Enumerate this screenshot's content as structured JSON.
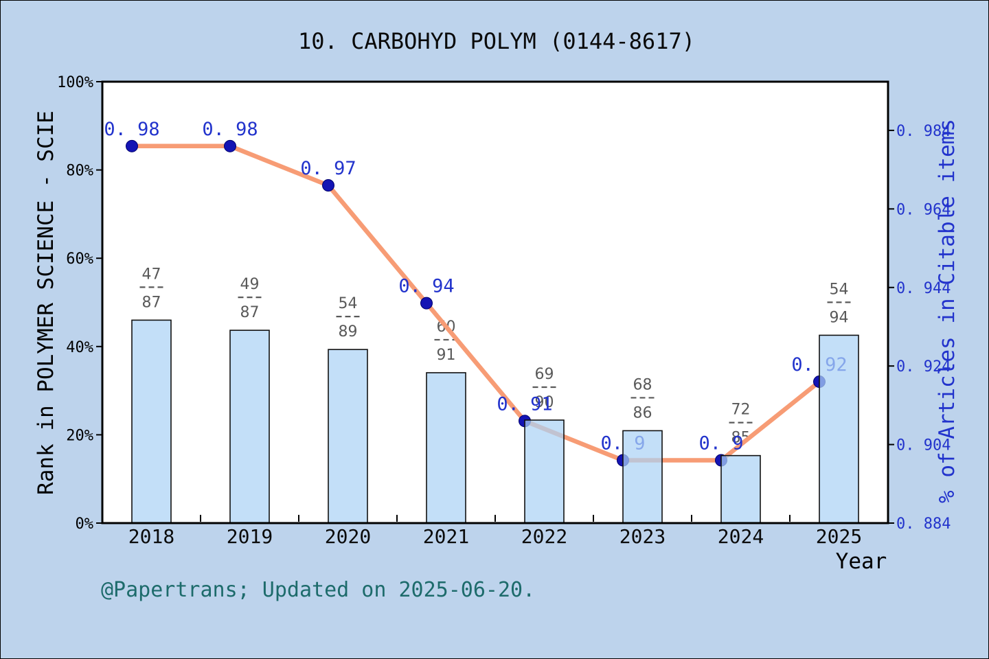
{
  "title": "10. CARBOHYD POLYM (0144-8617)",
  "footer": "@Papertrans; Updated on 2025-06-20.",
  "axes": {
    "x": {
      "title": "Year"
    },
    "left": {
      "title": "Rank in POLYMER SCIENCE - SCIE",
      "ticks": [
        {
          "label": "0%",
          "value": 0
        },
        {
          "label": "20%",
          "value": 20
        },
        {
          "label": "40%",
          "value": 40
        },
        {
          "label": "60%",
          "value": 60
        },
        {
          "label": "80%",
          "value": 80
        },
        {
          "label": "100%",
          "value": 100
        }
      ]
    },
    "right": {
      "title": "% of Articles in Citable items",
      "ticks": [
        {
          "label": "0. 884",
          "value": 0.884
        },
        {
          "label": "0. 904",
          "value": 0.904
        },
        {
          "label": "0. 924",
          "value": 0.924
        },
        {
          "label": "0. 944",
          "value": 0.944
        },
        {
          "label": "0. 964",
          "value": 0.964
        },
        {
          "label": "0. 984",
          "value": 0.984
        }
      ]
    }
  },
  "chart_data": {
    "type": "bar+line",
    "categories": [
      "2018",
      "2019",
      "2020",
      "2021",
      "2022",
      "2023",
      "2024",
      "2025"
    ],
    "left_ylim": [
      0,
      100
    ],
    "right_ylim": [
      0.884,
      0.9964
    ],
    "grid": false,
    "bars": {
      "name": "Rank in POLYMER SCIENCE - SCIE",
      "axis": "left",
      "fractions": [
        {
          "numerator": 47,
          "denominator": 87
        },
        {
          "numerator": 49,
          "denominator": 87
        },
        {
          "numerator": 54,
          "denominator": 89
        },
        {
          "numerator": 60,
          "denominator": 91
        },
        {
          "numerator": 69,
          "denominator": 90
        },
        {
          "numerator": 68,
          "denominator": 86
        },
        {
          "numerator": 72,
          "denominator": 85
        },
        {
          "numerator": 54,
          "denominator": 94
        }
      ],
      "bar_percent_values": [
        45.98,
        43.68,
        39.33,
        34.07,
        23.33,
        20.93,
        15.29,
        42.55
      ]
    },
    "line": {
      "name": "% of Articles in Citable items",
      "axis": "right",
      "values": [
        0.98,
        0.98,
        0.97,
        0.94,
        0.91,
        0.9,
        0.9,
        0.92
      ],
      "labels": [
        "0. 98",
        "0. 98",
        "0. 97",
        "0. 94",
        "0. 91",
        "0. 9",
        "0. 9",
        "0. 92"
      ]
    }
  },
  "colors": {
    "background": "#bdd3ec",
    "plot_background": "#ffffff",
    "axis": "#000000",
    "bar_fill": "rgba(172,211,245,0.72)",
    "bar_border": "#111111",
    "line": "#f79c75",
    "marker": "#1414b4",
    "marker_edge": "#00006e",
    "value_label": "#2233cc",
    "fraction_label": "#595959",
    "right_axis_text": "#2233cc",
    "left_axis_text": "#000000",
    "footer_text": "#1d6b6b"
  }
}
